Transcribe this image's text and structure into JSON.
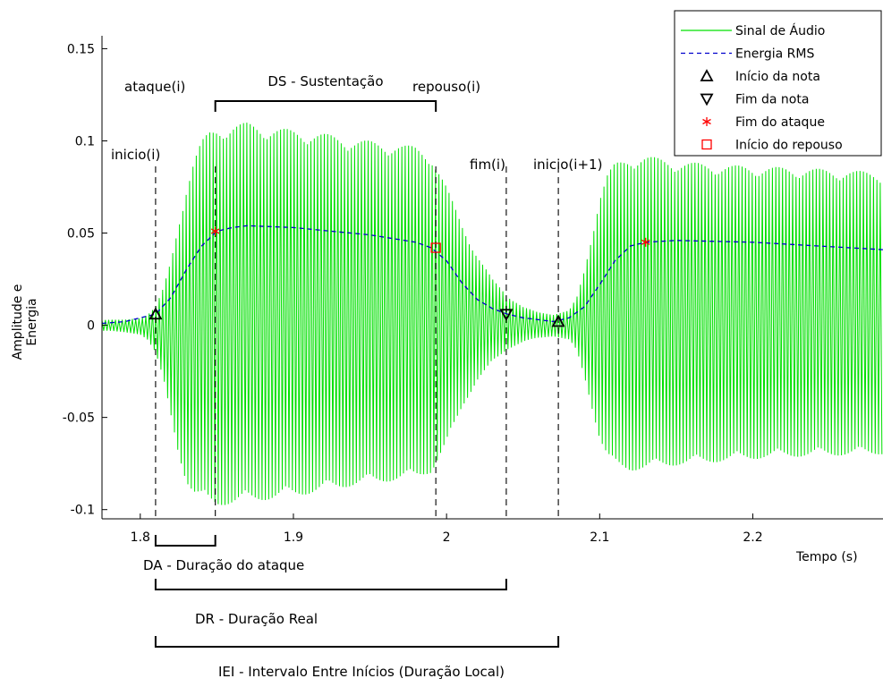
{
  "chart_data": {
    "type": "line",
    "xlabel": "Tempo (s)",
    "ylabel": [
      "Amplitude e",
      "Energia"
    ],
    "xlim": [
      1.775,
      2.285
    ],
    "ylim": [
      -0.105,
      0.157
    ],
    "xticks": [
      1.8,
      1.9,
      2,
      2.1,
      2.2
    ],
    "xtick_labels": [
      "1.8",
      "1.9",
      "2",
      "2.1",
      "2.2"
    ],
    "yticks": [
      -0.1,
      -0.05,
      0,
      0.05,
      0.1,
      0.15
    ],
    "ytick_labels": [
      "-0.1",
      "-0.05",
      "0",
      "0.05",
      "0.1",
      "0.15"
    ],
    "grid": false,
    "legend_position": "top-right",
    "colors": {
      "signal": "#00e000",
      "rms": "#0000cc",
      "start_marker": "#000000",
      "end_marker": "#000000",
      "attack_marker": "#ff0000",
      "rest_marker": "#ff0000"
    },
    "series": [
      {
        "name": "Sinal de Áudio",
        "style": "solid-line",
        "envelope_x": [
          1.775,
          1.78,
          1.79,
          1.8,
          1.805,
          1.81,
          1.815,
          1.82,
          1.825,
          1.83,
          1.835,
          1.84,
          1.845,
          1.85,
          1.86,
          1.87,
          1.88,
          1.9,
          1.92,
          1.94,
          1.96,
          1.98,
          1.99,
          2.0,
          2.01,
          2.02,
          2.03,
          2.04,
          2.05,
          2.06,
          2.07,
          2.08,
          2.085,
          2.09,
          2.095,
          2.1,
          2.105,
          2.11,
          2.12,
          2.13,
          2.15,
          2.18,
          2.21,
          2.24,
          2.285
        ],
        "envelope_upper": [
          0.003,
          0.003,
          0.003,
          0.004,
          0.006,
          0.01,
          0.02,
          0.035,
          0.055,
          0.075,
          0.09,
          0.1,
          0.105,
          0.107,
          0.109,
          0.11,
          0.108,
          0.106,
          0.104,
          0.101,
          0.099,
          0.097,
          0.093,
          0.075,
          0.055,
          0.038,
          0.025,
          0.016,
          0.01,
          0.007,
          0.006,
          0.008,
          0.015,
          0.03,
          0.05,
          0.07,
          0.082,
          0.088,
          0.091,
          0.092,
          0.089,
          0.087,
          0.086,
          0.085,
          0.083
        ],
        "envelope_lower": [
          -0.003,
          -0.003,
          -0.004,
          -0.005,
          -0.008,
          -0.015,
          -0.03,
          -0.05,
          -0.07,
          -0.085,
          -0.092,
          -0.095,
          -0.097,
          -0.098,
          -0.097,
          -0.096,
          -0.095,
          -0.093,
          -0.09,
          -0.087,
          -0.085,
          -0.083,
          -0.08,
          -0.065,
          -0.045,
          -0.03,
          -0.02,
          -0.013,
          -0.009,
          -0.007,
          -0.006,
          -0.008,
          -0.014,
          -0.028,
          -0.045,
          -0.062,
          -0.072,
          -0.077,
          -0.079,
          -0.078,
          -0.076,
          -0.074,
          -0.072,
          -0.071,
          -0.07
        ]
      },
      {
        "name": "Energia RMS",
        "style": "dashed-line",
        "x": [
          1.775,
          1.79,
          1.8,
          1.81,
          1.82,
          1.83,
          1.84,
          1.85,
          1.86,
          1.87,
          1.9,
          1.95,
          1.98,
          1.99,
          2.0,
          2.01,
          2.02,
          2.03,
          2.04,
          2.05,
          2.06,
          2.07,
          2.08,
          2.09,
          2.1,
          2.11,
          2.12,
          2.13,
          2.15,
          2.2,
          2.285
        ],
        "y": [
          0.001,
          0.002,
          0.004,
          0.006,
          0.015,
          0.03,
          0.043,
          0.051,
          0.053,
          0.054,
          0.053,
          0.049,
          0.045,
          0.042,
          0.035,
          0.023,
          0.014,
          0.009,
          0.006,
          0.004,
          0.003,
          0.002,
          0.004,
          0.01,
          0.022,
          0.035,
          0.043,
          0.045,
          0.046,
          0.045,
          0.041
        ]
      },
      {
        "name": "Início da nota",
        "style": "marker-triangle-up",
        "x": [
          1.81,
          2.073
        ],
        "y": [
          0.006,
          0.002
        ]
      },
      {
        "name": "Fim da nota",
        "style": "marker-triangle-down",
        "x": [
          2.039
        ],
        "y": [
          0.006
        ]
      },
      {
        "name": "Fim do ataque",
        "style": "marker-asterisk",
        "x": [
          1.849,
          2.13
        ],
        "y": [
          0.051,
          0.045
        ]
      },
      {
        "name": "Início do repouso",
        "style": "marker-square",
        "x": [
          1.993
        ],
        "y": [
          0.042
        ]
      }
    ],
    "vlines": [
      {
        "label": "inicio(i)",
        "x": 1.81
      },
      {
        "label": "ataque(i)",
        "x": 1.849
      },
      {
        "label": "repouso(i)",
        "x": 1.993
      },
      {
        "label": "fim(i)",
        "x": 2.039
      },
      {
        "label": "inicio(i+1)",
        "x": 2.073
      }
    ],
    "brackets": [
      {
        "label": "DS - Sustentação",
        "x0": 1.849,
        "x1": 1.993,
        "side": "top"
      },
      {
        "label": "DA - Duração do ataque",
        "x0": 1.81,
        "x1": 1.849,
        "side": "bottom"
      },
      {
        "label": "DR - Duração Real",
        "x0": 1.81,
        "x1": 2.039,
        "side": "bottom"
      },
      {
        "label": "IEI - Intervalo Entre Inícios (Duração Local)",
        "x0": 1.81,
        "x1": 2.073,
        "side": "bottom"
      }
    ]
  }
}
